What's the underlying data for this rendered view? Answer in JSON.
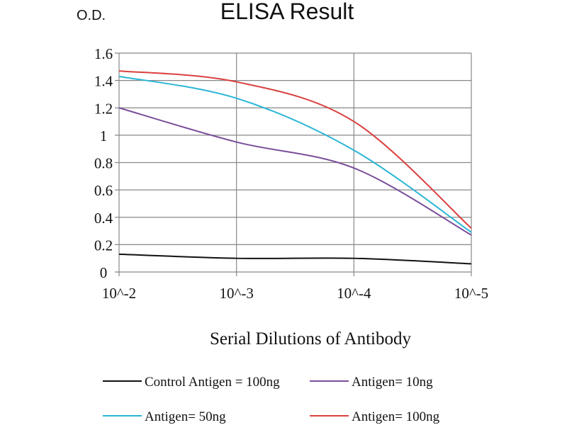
{
  "chart_data": {
    "type": "line",
    "title": "ELISA Result",
    "ylabel": "O.D.",
    "xlabel": "Serial Dilutions of Antibody",
    "categories": [
      "10^-2",
      "10^-3",
      "10^-4",
      "10^-5"
    ],
    "ylim": [
      0,
      1.6
    ],
    "yticks": [
      "0",
      "0.2",
      "0.4",
      "0.6",
      "0.8",
      "1",
      "1.2",
      "1.4",
      "1.6"
    ],
    "grid": true,
    "legend_position": "bottom",
    "series": [
      {
        "name": "Control Antigen = 100ng",
        "color": "#111111",
        "values": [
          0.13,
          0.1,
          0.1,
          0.06
        ]
      },
      {
        "name": "Antigen= 10ng",
        "color": "#7a4f9a",
        "values": [
          1.2,
          0.95,
          0.76,
          0.27
        ]
      },
      {
        "name": "Antigen= 50ng",
        "color": "#2bb6d6",
        "values": [
          1.43,
          1.27,
          0.89,
          0.29
        ]
      },
      {
        "name": "Antigen= 100ng",
        "color": "#d9403f",
        "values": [
          1.47,
          1.39,
          1.1,
          0.32
        ]
      }
    ]
  }
}
